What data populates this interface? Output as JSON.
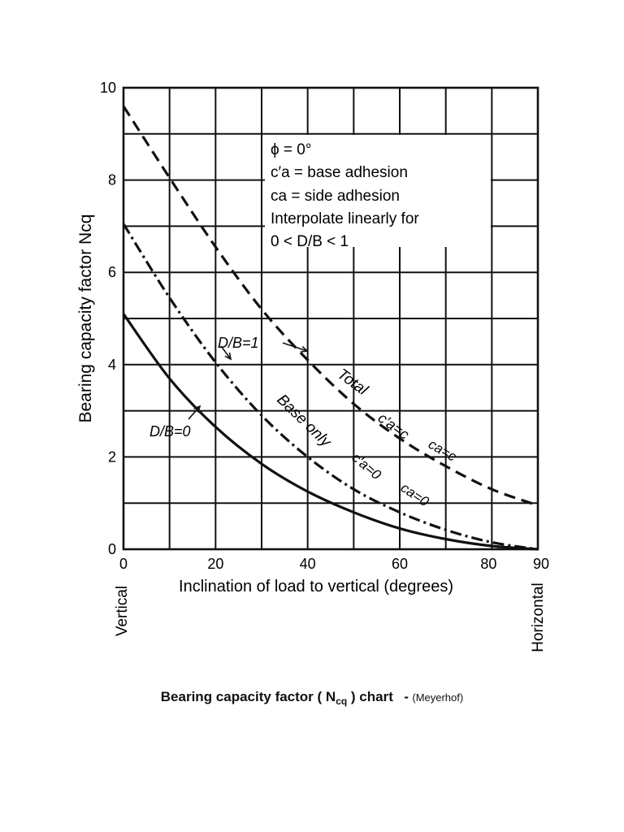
{
  "chart_data": {
    "type": "line",
    "xlabel": "Inclination of load to vertical (degrees)",
    "ylabel": "Bearing capacity factor Ncq",
    "xlim": [
      0,
      90
    ],
    "ylim": [
      0,
      10
    ],
    "x_ticks": [
      "0",
      "20",
      "40",
      "60",
      "80",
      "90"
    ],
    "y_ticks": [
      "0",
      "2",
      "4",
      "6",
      "8",
      "10"
    ],
    "x_end_labels": {
      "left": "Vertical",
      "right": "Horizontal"
    },
    "grid": true,
    "notes": [
      "ϕ = 0°",
      "c′a = base adhesion",
      "ca = side adhesion",
      "Interpolate linearly for",
      "0 < D/B < 1"
    ],
    "series": [
      {
        "name": "D/B=0",
        "style": "solid",
        "x": [
          0,
          10,
          20,
          30,
          40,
          50,
          60,
          70,
          80,
          90
        ],
        "y": [
          5.1,
          3.7,
          2.65,
          1.85,
          1.25,
          0.8,
          0.45,
          0.22,
          0.07,
          0.0
        ]
      },
      {
        "name": "Base only c′a=0  ca=0",
        "style": "dashdot",
        "x": [
          0,
          10,
          20,
          30,
          40,
          50,
          60,
          70,
          80,
          90
        ],
        "y": [
          7.05,
          5.45,
          4.05,
          2.9,
          2.0,
          1.3,
          0.8,
          0.42,
          0.15,
          0.0
        ]
      },
      {
        "name": "Total c′a=c  ca=c",
        "style": "dashed",
        "x": [
          0,
          10,
          20,
          30,
          40,
          50,
          60,
          70,
          80,
          90
        ],
        "y": [
          9.6,
          8.05,
          6.55,
          5.2,
          4.1,
          3.15,
          2.4,
          1.8,
          1.3,
          0.95
        ]
      }
    ],
    "annotations": [
      {
        "text": "D/B=1"
      },
      {
        "text": "D/B=0"
      },
      {
        "text": "Total"
      },
      {
        "text": "c′a=c"
      },
      {
        "text": "ca=c"
      },
      {
        "text": "Base only"
      },
      {
        "text": "c′a=0"
      },
      {
        "text": "ca=0"
      }
    ]
  },
  "caption": {
    "title": "Bearing capacity factor ( N",
    "subscript": "cq",
    "title_end": " ) chart",
    "dash": "-",
    "source": "(Meyerhof)"
  }
}
